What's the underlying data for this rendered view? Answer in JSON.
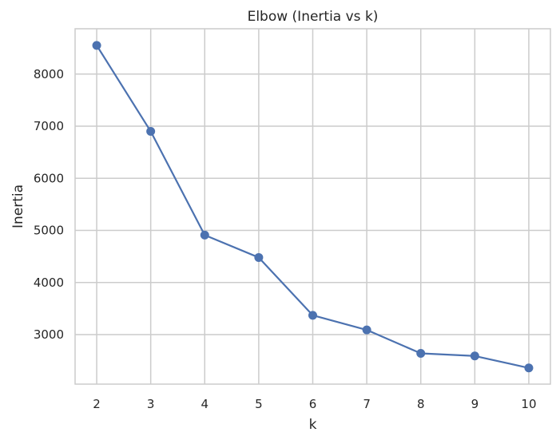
{
  "chart_data": {
    "type": "line",
    "title": "Elbow (Inertia vs k)",
    "xlabel": "k",
    "ylabel": "Inertia",
    "x": [
      2,
      3,
      4,
      5,
      6,
      7,
      8,
      9,
      10
    ],
    "series": [
      {
        "values": [
          8550,
          6900,
          4910,
          4480,
          3370,
          3090,
          2640,
          2590,
          2360
        ],
        "color": "#4c72b0",
        "marker": "circle"
      }
    ],
    "xticks": [
      "2",
      "3",
      "4",
      "5",
      "6",
      "7",
      "8",
      "9",
      "10"
    ],
    "yticks": [
      "3000",
      "4000",
      "5000",
      "6000",
      "7000",
      "8000"
    ],
    "xlim": [
      1.6,
      10.4
    ],
    "ylim": [
      2050,
      8870
    ],
    "grid": true,
    "grid_color": "#cccccc",
    "axes_edge_color": "#cccccc",
    "text_color": "#262626"
  }
}
